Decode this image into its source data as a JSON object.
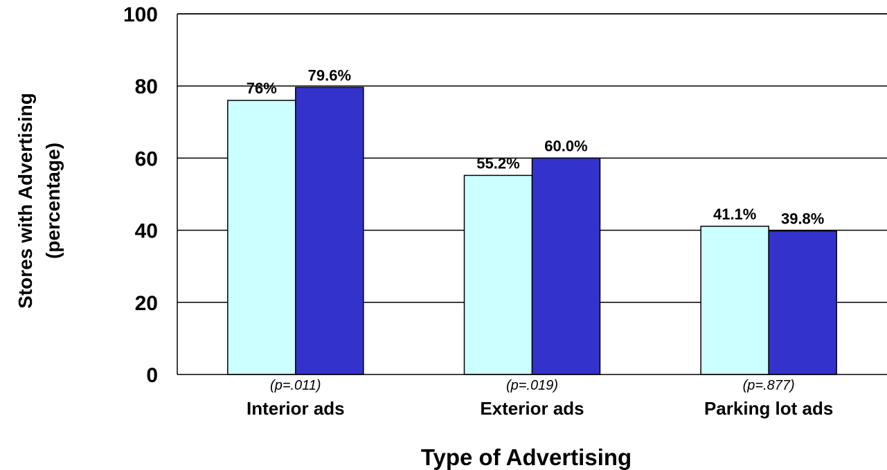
{
  "chart_data": {
    "type": "bar",
    "categories": [
      "Interior ads",
      "Exterior ads",
      "Parking lot ads"
    ],
    "p_values": [
      "(p=.011)",
      "(p=.019)",
      "(p=.877)"
    ],
    "series": [
      {
        "values": [
          76,
          55.2,
          41.1
        ],
        "labels": [
          "76%",
          "55.2%",
          "41.1%"
        ],
        "color": "#ccffff"
      },
      {
        "values": [
          79.6,
          60.0,
          39.8
        ],
        "labels": [
          "79.6%",
          "60.0%",
          "39.8%"
        ],
        "color": "#3333cc"
      }
    ],
    "xlabel": "Type of Advertising",
    "ylabel_lines": [
      "Stores with Advertising",
      "(percentage)"
    ],
    "ylim": [
      0,
      100
    ],
    "yticks": [
      0,
      20,
      40,
      60,
      80,
      100
    ],
    "grid": true,
    "legend": "none"
  }
}
